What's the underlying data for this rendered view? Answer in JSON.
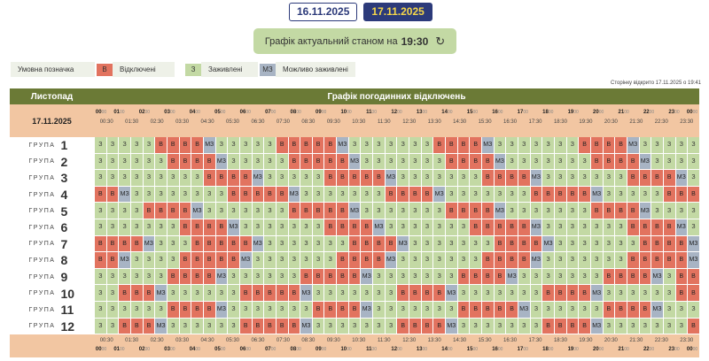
{
  "date_tabs": [
    {
      "label": "16.11.2025",
      "active": false
    },
    {
      "label": "17.11.2025",
      "active": true
    }
  ],
  "status": {
    "text": "Графік актуальний станом на",
    "time": "19:30",
    "refresh_icon": "refresh-icon"
  },
  "legend": {
    "title": "Умовна позначка",
    "items": [
      {
        "code": "В",
        "label": "Відключені",
        "color": "#e2735f"
      },
      {
        "code": "З",
        "label": "Заживлені",
        "color": "#c3d9a4"
      },
      {
        "code": "МЗ",
        "label": "Можливо заживлені",
        "color": "#a8b4c4"
      }
    ]
  },
  "opened_text": "Сторінку відкрито 17.11.2025 о 19:41",
  "table": {
    "month_header": "Листопад",
    "title": "Графік погодинних відключень",
    "date_label": "17.11.2025",
    "group_word": "ГРУПА",
    "hours": [
      "00",
      "01",
      "02",
      "03",
      "04",
      "05",
      "06",
      "07",
      "08",
      "09",
      "10",
      "11",
      "12",
      "13",
      "14",
      "15",
      "16",
      "17",
      "18",
      "19",
      "20",
      "21",
      "22",
      "23",
      "00"
    ],
    "minute_suffix": "00",
    "half_hours": [
      "00:30",
      "01:30",
      "02:30",
      "03:30",
      "04:30",
      "05:30",
      "06:30",
      "07:30",
      "08:30",
      "09:30",
      "10:30",
      "11:30",
      "12:30",
      "13:30",
      "14:30",
      "15:30",
      "16:30",
      "17:30",
      "18:30",
      "19:30",
      "20:30",
      "21:30",
      "22:30",
      "23:30"
    ],
    "codes": {
      "3": "З",
      "B": "В",
      "M": "МЗ"
    },
    "colors": {
      "off": "#e2735f",
      "on": "#c3d9a4",
      "maybe": "#a8b4c4",
      "header": "#6b7a36",
      "timebar": "#f2c6a2"
    },
    "groups": [
      {
        "num": "1",
        "cells": "33333BBBBM33333BBBBBM3333333BBBBM3333333BBBBM33333"
      },
      {
        "num": "2",
        "cells": "333333BBBBM33333BBBBBM3333333BBBBM3333333BBBBM3333"
      },
      {
        "num": "3",
        "cells": "333333333BBBBM33333BBBBBM3333333BBBBM3333333BBBBM3"
      },
      {
        "num": "4",
        "cells": "BBM33333333BBBBBM3333333BBBBM3333333BBBBBM33333BBB"
      },
      {
        "num": "5",
        "cells": "3333BBBBM3333333BBBBBM3333333BBBBM3333333BBBBM3333"
      },
      {
        "num": "6",
        "cells": "3333333BBBBM3333333BBBBM3333333BBBBBM3333333BBBBM3"
      },
      {
        "num": "7",
        "cells": "BBBBM333BBBBBM3333333BBBBM3333333BBBBM3333333BBBBM"
      },
      {
        "num": "8",
        "cells": "BBM3333BBBBBM3333333BBBBM3333333BBBBM3333333BBBBBM"
      },
      {
        "num": "9",
        "cells": "333333BBBBM333333BBBBBM3333333BBBBM3333333BBBBM3BB"
      },
      {
        "num": "10",
        "cells": "33BBBM333333BBBBBM3333333BBBBM3333333BBBBM333333BB"
      },
      {
        "num": "11",
        "cells": "333333BBBBM3333333BBBBM3333333BBBBBM333333BBBBM333"
      },
      {
        "num": "12",
        "cells": "33BBBM333333BBBBBM3333333BBBBM3333333BBBBM3333333B"
      }
    ]
  }
}
